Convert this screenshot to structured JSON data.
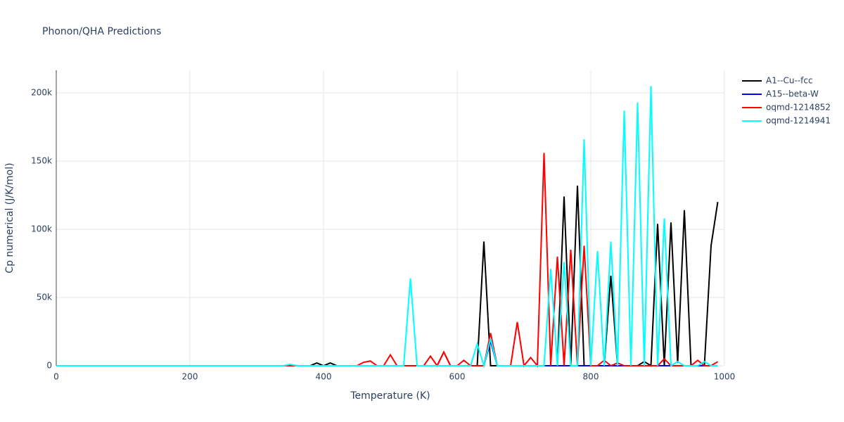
{
  "chart_data": {
    "type": "line",
    "title": "Phonon/QHA Predictions",
    "x_label": "Temperature (K)",
    "y_label": "Cp numerical (J/K/mol)",
    "x": [
      0,
      10,
      20,
      30,
      40,
      50,
      60,
      70,
      80,
      90,
      100,
      110,
      120,
      130,
      140,
      150,
      160,
      170,
      180,
      190,
      200,
      210,
      220,
      230,
      240,
      250,
      260,
      270,
      280,
      290,
      300,
      310,
      320,
      330,
      340,
      350,
      360,
      370,
      380,
      390,
      400,
      410,
      420,
      430,
      440,
      450,
      460,
      470,
      480,
      490,
      500,
      510,
      520,
      530,
      540,
      550,
      560,
      570,
      580,
      590,
      600,
      610,
      620,
      630,
      640,
      650,
      660,
      670,
      680,
      690,
      700,
      710,
      720,
      730,
      740,
      750,
      760,
      770,
      780,
      790,
      800,
      810,
      820,
      830,
      840,
      850,
      860,
      870,
      880,
      890,
      900,
      910,
      920,
      930,
      940,
      950,
      960,
      970,
      980,
      990
    ],
    "series": [
      {
        "name": "A1--Cu--fcc",
        "color": "#000000",
        "values": [
          0,
          0,
          0,
          0,
          0,
          0,
          0,
          0,
          0,
          0,
          0,
          0,
          0,
          0,
          0,
          0,
          0,
          0,
          0,
          0,
          0,
          0,
          0,
          0,
          0,
          0,
          0,
          0,
          0,
          0,
          0,
          0,
          0,
          0,
          0,
          0,
          0,
          0,
          0,
          2000,
          0,
          2000,
          0,
          0,
          0,
          0,
          0,
          0,
          0,
          0,
          0,
          0,
          0,
          0,
          0,
          0,
          0,
          0,
          10000,
          0,
          0,
          0,
          0,
          0,
          91000,
          0,
          0,
          0,
          0,
          0,
          0,
          0,
          0,
          0,
          0,
          0,
          124000,
          0,
          132000,
          0,
          0,
          0,
          0,
          66000,
          0,
          0,
          0,
          0,
          3000,
          0,
          104000,
          0,
          105000,
          2000,
          114000,
          0,
          0,
          0,
          88000,
          120000
        ]
      },
      {
        "name": "A15--beta-W",
        "color": "#0000ff",
        "values": [
          0,
          0,
          0,
          0,
          0,
          0,
          0,
          0,
          0,
          0,
          0,
          0,
          0,
          0,
          0,
          0,
          0,
          0,
          0,
          0,
          0,
          0,
          0,
          0,
          0,
          0,
          0,
          0,
          0,
          0,
          0,
          0,
          0,
          0,
          0,
          0,
          0,
          0,
          0,
          0,
          0,
          0,
          0,
          0,
          0,
          0,
          0,
          0,
          0,
          0,
          0,
          0,
          0,
          0,
          0,
          0,
          0,
          0,
          0,
          0,
          0,
          0,
          0,
          0,
          0,
          18000,
          0,
          0,
          0,
          0,
          0,
          0,
          0,
          0,
          0,
          0,
          0,
          0,
          0,
          0,
          0,
          0,
          0,
          0,
          0,
          0,
          0,
          0,
          0,
          0,
          0,
          0,
          0,
          0,
          0,
          0,
          0,
          0,
          0,
          0
        ]
      },
      {
        "name": "oqmd-1214852",
        "color": "#ff0000",
        "values": [
          0,
          0,
          0,
          0,
          0,
          0,
          0,
          0,
          0,
          0,
          0,
          0,
          0,
          0,
          0,
          0,
          0,
          0,
          0,
          0,
          0,
          0,
          0,
          0,
          0,
          0,
          0,
          0,
          0,
          0,
          0,
          0,
          0,
          0,
          0,
          0,
          0,
          0,
          0,
          0,
          0,
          0,
          0,
          0,
          0,
          0,
          2500,
          3500,
          0,
          0,
          8000,
          0,
          0,
          0,
          0,
          0,
          7000,
          0,
          10000,
          0,
          0,
          4000,
          0,
          0,
          0,
          24000,
          0,
          0,
          0,
          32000,
          0,
          6000,
          0,
          156000,
          0,
          80000,
          0,
          85000,
          0,
          88000,
          0,
          0,
          4000,
          0,
          2000,
          0,
          0,
          0,
          0,
          0,
          0,
          5000,
          0,
          0,
          0,
          0,
          4000,
          0,
          0,
          3000
        ]
      },
      {
        "name": "oqmd-1214941",
        "color": "#00ffff",
        "values": [
          0,
          0,
          0,
          0,
          0,
          0,
          0,
          0,
          0,
          0,
          0,
          0,
          0,
          0,
          0,
          0,
          0,
          0,
          0,
          0,
          0,
          0,
          0,
          0,
          0,
          0,
          0,
          0,
          0,
          0,
          0,
          0,
          0,
          0,
          0,
          1000,
          0,
          0,
          0,
          0,
          0,
          0,
          0,
          0,
          0,
          0,
          0,
          0,
          0,
          0,
          0,
          0,
          0,
          64000,
          0,
          0,
          0,
          0,
          0,
          0,
          0,
          0,
          0,
          16000,
          0,
          20000,
          0,
          0,
          0,
          0,
          0,
          0,
          0,
          0,
          71000,
          0,
          76000,
          0,
          0,
          166000,
          0,
          84000,
          0,
          91000,
          0,
          187000,
          0,
          193000,
          0,
          205000,
          0,
          108000,
          0,
          3000,
          0,
          0,
          0,
          3000,
          0,
          0
        ]
      }
    ],
    "xlim": [
      0,
      1000
    ],
    "xticks": [
      0,
      200,
      400,
      600,
      800,
      1000
    ],
    "ylim": [
      0,
      216500
    ],
    "yticks": [
      0,
      {
        "value": 50000,
        "label": "50k"
      },
      {
        "value": 100000,
        "label": "100k"
      },
      {
        "value": 150000,
        "label": "150k"
      },
      {
        "value": 200000,
        "label": "200k"
      }
    ],
    "grid": true,
    "legend": "right"
  }
}
